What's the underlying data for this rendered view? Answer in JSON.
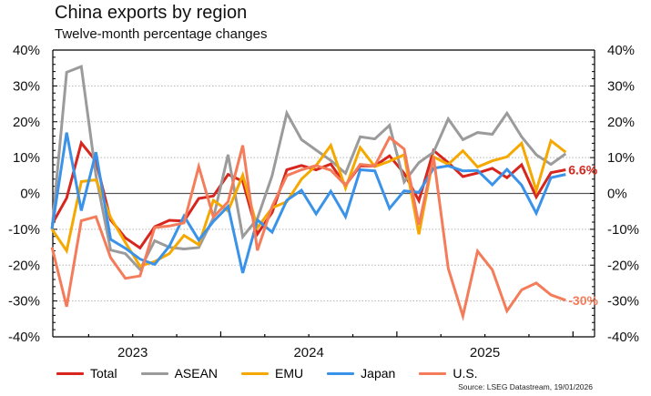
{
  "chart_data": {
    "type": "line",
    "title": "China exports by region",
    "subtitle": "Twelve-month percentage changes",
    "xlabel": "",
    "ylabel": "",
    "ylim": [
      -40,
      40
    ],
    "yticks": [
      40,
      30,
      20,
      10,
      0,
      -10,
      -20,
      -30,
      -40
    ],
    "ytick_labels": [
      "40%",
      "30%",
      "20%",
      "10%",
      "0%",
      "-10%",
      "-20%",
      "-30%",
      "-40%"
    ],
    "y_axes": "left-and-right",
    "grid": "horizontal dotted",
    "x_start": "2023-01",
    "x_frequency": "monthly",
    "x_year_labels": [
      "2023",
      "2024",
      "2025"
    ],
    "legend_position": "bottom",
    "series": [
      {
        "name": "Total",
        "color": "#d7261e",
        "values": [
          -8.6,
          -1.3,
          14.1,
          9.0,
          -7.4,
          -12.4,
          -15.2,
          -9.3,
          -7.5,
          -7.7,
          -1.4,
          -0.7,
          5.3,
          3.4,
          -11.3,
          -5.3,
          6.6,
          7.8,
          6.6,
          8.2,
          2.3,
          7.7,
          7.7,
          10.5,
          5.6,
          -2.0,
          12.0,
          8.6,
          4.7,
          5.7,
          7.0,
          4.4,
          8.0,
          -1.0,
          5.8,
          6.6
        ]
      },
      {
        "name": "ASEAN",
        "color": "#9b9b9b",
        "values": [
          -10.0,
          33.8,
          35.4,
          5.0,
          -15.8,
          -16.8,
          -21.2,
          -13.2,
          -15.0,
          -15.5,
          -15.1,
          -6.8,
          10.8,
          -12.1,
          -7.0,
          5.0,
          22.4,
          15.0,
          12.1,
          9.2,
          5.6,
          15.8,
          15.2,
          19.0,
          3.2,
          8.6,
          11.5,
          20.8,
          15.0,
          17.0,
          16.5,
          22.4,
          15.8,
          10.8,
          8.1,
          11.1
        ]
      },
      {
        "name": "EMU",
        "color": "#f5a800",
        "values": [
          -10.0,
          -16.0,
          3.3,
          3.8,
          -6.7,
          -13.7,
          -20.3,
          -19.0,
          -16.8,
          -11.7,
          -14.3,
          -1.9,
          -4.9,
          5.1,
          -9.6,
          -4.0,
          -2.3,
          4.0,
          7.8,
          13.4,
          1.5,
          12.8,
          7.5,
          9.0,
          10.8,
          -11.4,
          10.2,
          8.1,
          11.9,
          7.4,
          9.1,
          10.2,
          14.0,
          0.8,
          14.7,
          11.5
        ]
      },
      {
        "name": "Japan",
        "color": "#3a93e8",
        "values": [
          -9.9,
          17.0,
          -4.8,
          11.5,
          -12.8,
          -15.3,
          -18.3,
          -19.8,
          -14.7,
          -6.3,
          -13.0,
          -7.8,
          -3.6,
          -22.2,
          -7.4,
          -10.8,
          -1.9,
          0.9,
          -5.7,
          0.6,
          -6.5,
          6.6,
          6.3,
          -4.2,
          0.7,
          0.3,
          7.0,
          7.7,
          6.3,
          6.4,
          2.4,
          6.7,
          2.3,
          -5.5,
          4.4,
          5.3
        ]
      },
      {
        "name": "U.S.",
        "color": "#f47c5a",
        "values": [
          -15.0,
          -31.6,
          -7.6,
          -6.5,
          -17.9,
          -23.7,
          -23.0,
          -9.5,
          -9.1,
          -8.2,
          7.5,
          -6.6,
          -2.3,
          13.4,
          -15.9,
          -3.6,
          5.0,
          6.6,
          7.8,
          6.5,
          2.3,
          8.1,
          7.7,
          15.6,
          12.4,
          -8.8,
          10.2,
          -20.9,
          -34.2,
          -16.1,
          -21.3,
          -32.8,
          -26.9,
          -25.0,
          -28.3,
          -29.8
        ]
      }
    ],
    "annotations": [
      {
        "series": "Total",
        "text": "6.6%",
        "color": "#d7261e"
      },
      {
        "series": "U.S.",
        "text": "-30%",
        "color": "#f47c5a"
      }
    ],
    "source": "Source: LSEG Datastream, 19/01/2026"
  }
}
